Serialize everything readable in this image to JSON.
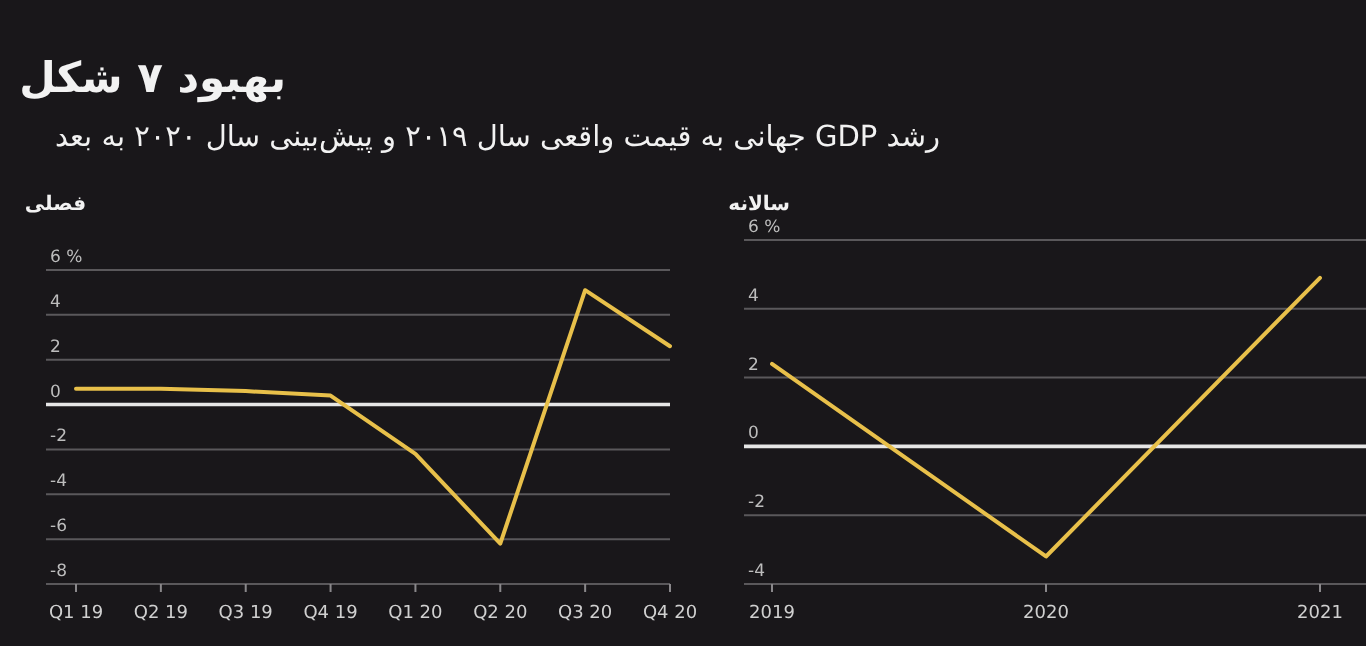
{
  "chart_data": [
    {
      "type": "line",
      "title": "بهبود ۷ شکل",
      "subtitle": "رشد GDP جهانی به قیمت واقعی سال ۲۰۱۹ و پیش‌بینی سال ۲۰۲۰ به بعد",
      "ylabel": "فصلی",
      "categories": [
        "Q1 19",
        "Q2 19",
        "Q3 19",
        "Q4 19",
        "Q1 20",
        "Q2 20",
        "Q3 20",
        "Q4 20"
      ],
      "series": [
        {
          "color": "#e8c04a",
          "values": [
            0.7,
            0.7,
            0.6,
            0.4,
            -2.2,
            -6.2,
            5.1,
            2.6
          ]
        }
      ],
      "ylim": [
        -8,
        6
      ],
      "yticks": [
        -8,
        -6,
        -4,
        -2,
        0,
        2,
        4,
        {
          "value": 6,
          "label": "6 %"
        }
      ],
      "grid": "y",
      "ref_lines": [
        {
          "axis": "y",
          "value": 0,
          "color": "#e6e6e6"
        }
      ]
    },
    {
      "type": "line",
      "ylabel": "سالانه",
      "categories": [
        "2019",
        "2020",
        "2021"
      ],
      "series": [
        {
          "color": "#e8c04a",
          "values": [
            2.4,
            -3.2,
            4.9
          ]
        }
      ],
      "ylim": [
        -4,
        6
      ],
      "yticks": [
        -4,
        -2,
        0,
        2,
        4,
        {
          "value": 6,
          "label": "6 %"
        }
      ],
      "grid": "y",
      "ref_lines": [
        {
          "axis": "y",
          "value": 0,
          "color": "#e6e6e6"
        }
      ]
    }
  ]
}
